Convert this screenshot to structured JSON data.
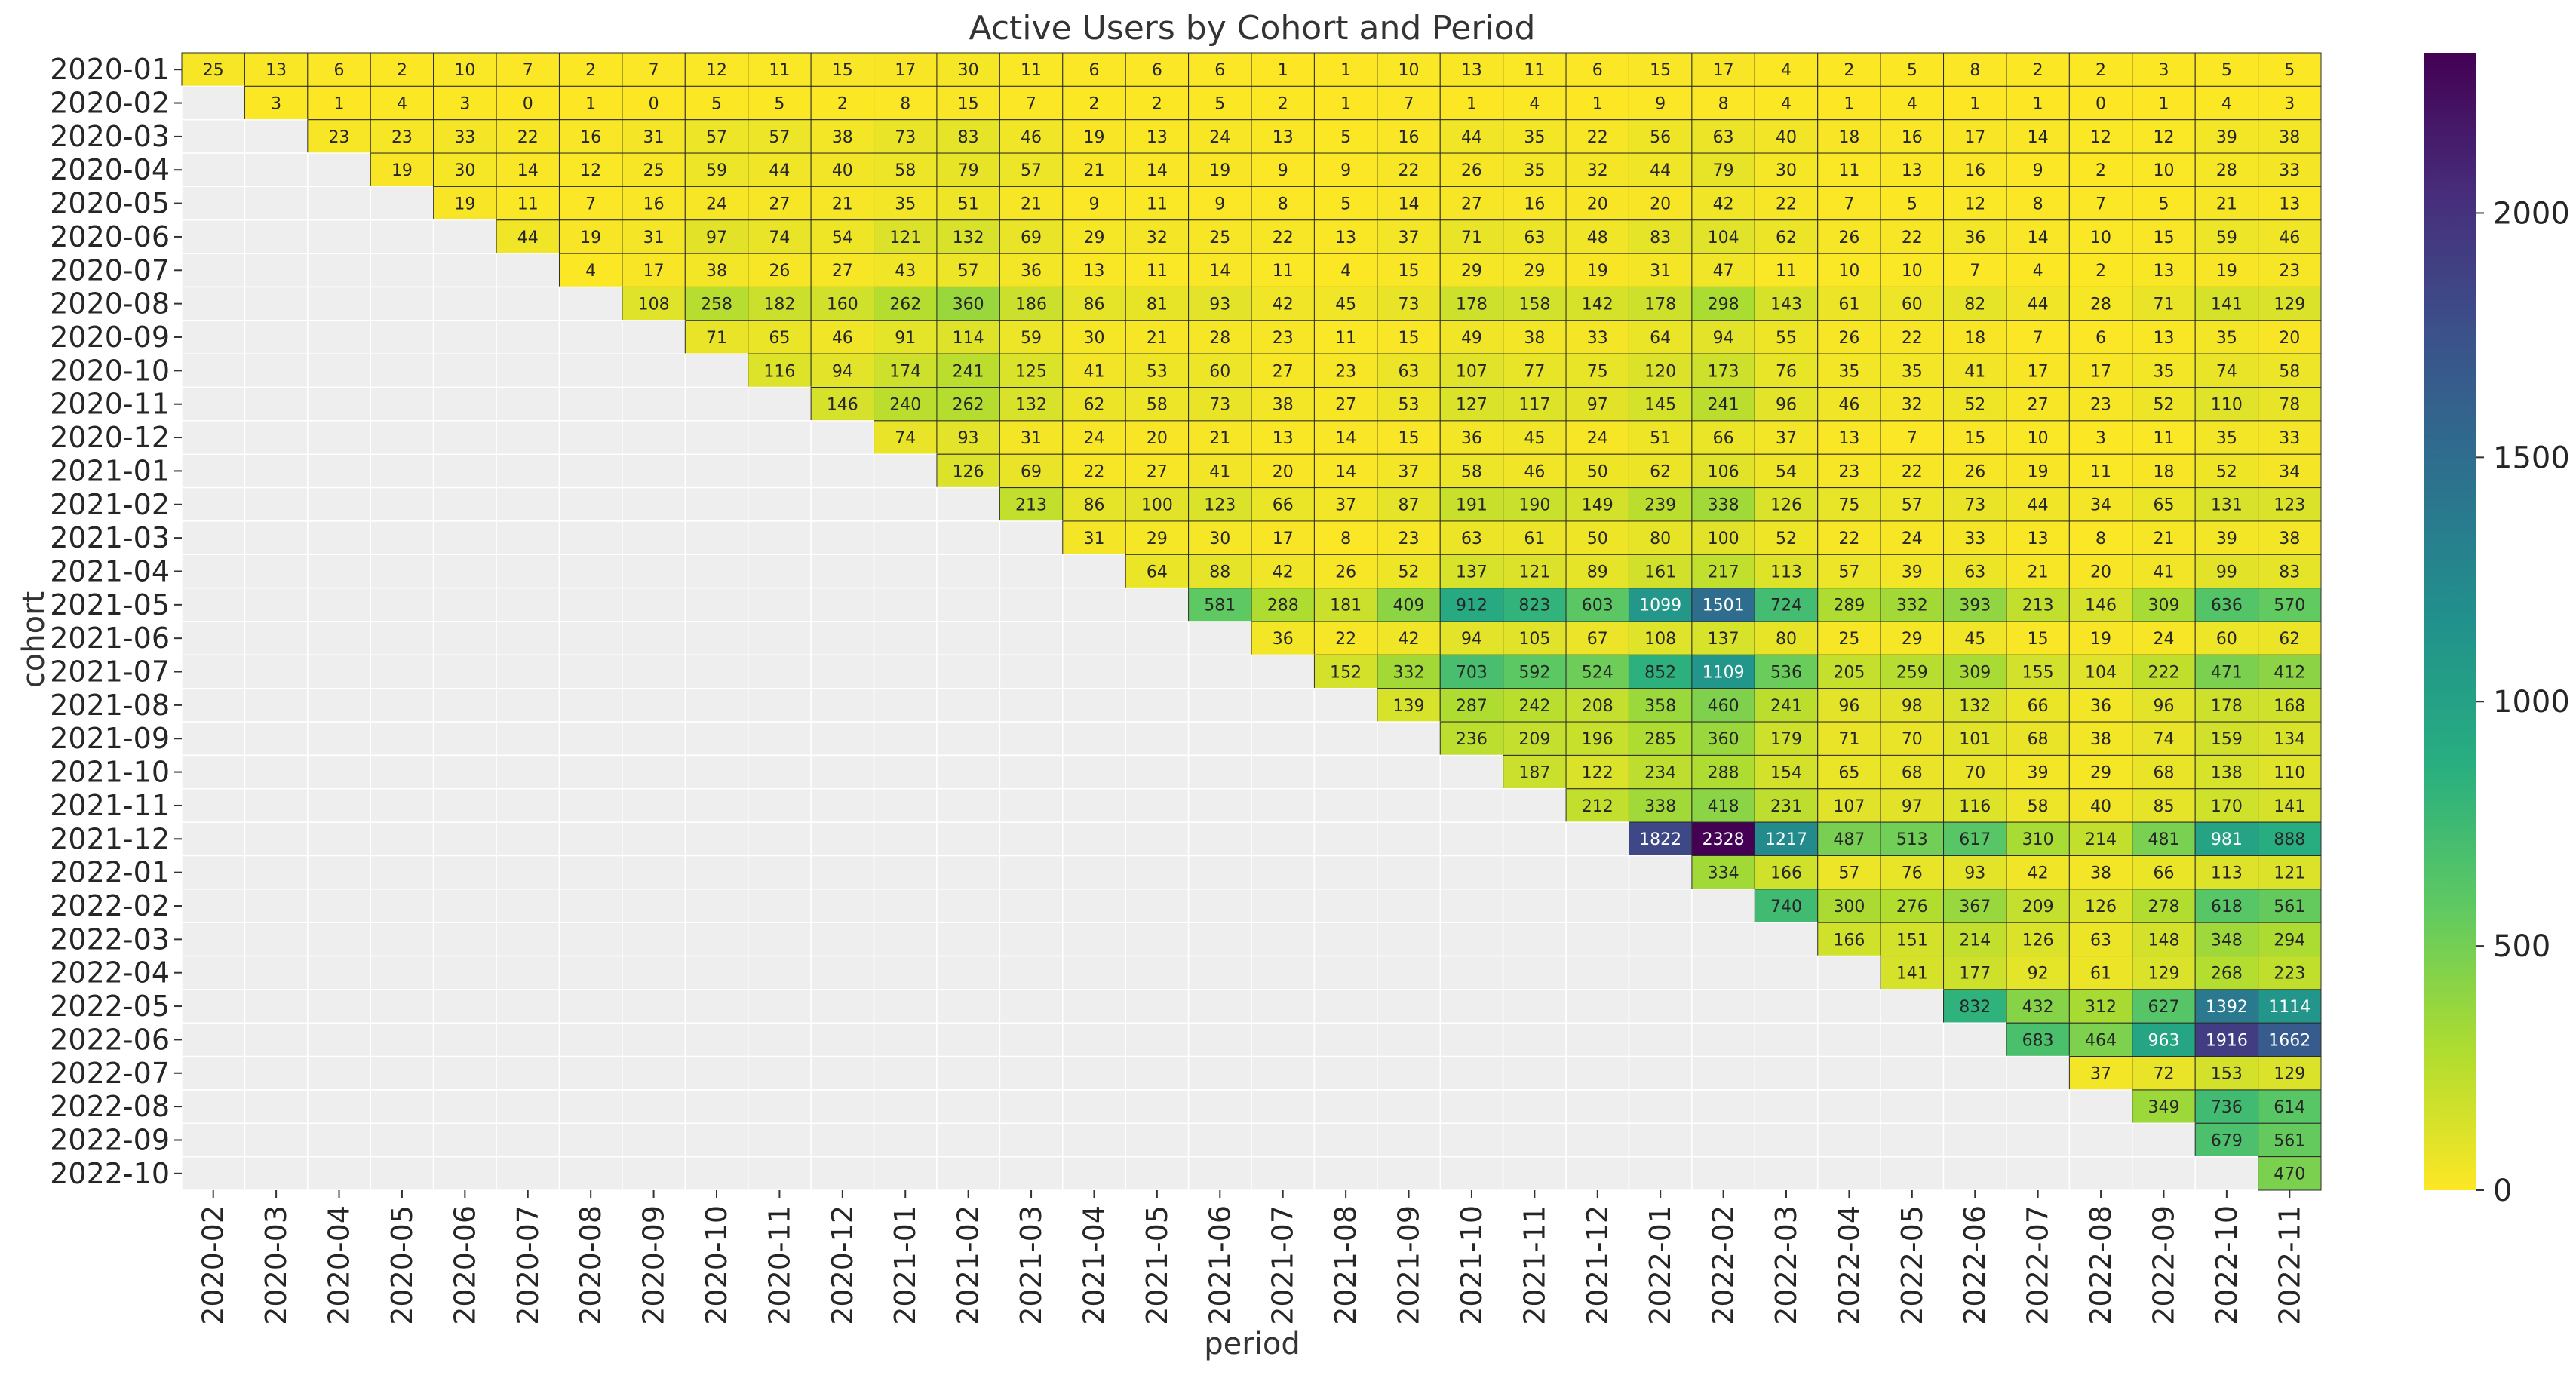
{
  "chart_data": {
    "type": "heatmap",
    "title": "Active Users by Cohort and Period",
    "xlabel": "period",
    "ylabel": "cohort",
    "x_categories": [
      "2020-02",
      "2020-03",
      "2020-04",
      "2020-05",
      "2020-06",
      "2020-07",
      "2020-08",
      "2020-09",
      "2020-10",
      "2020-11",
      "2020-12",
      "2021-01",
      "2021-02",
      "2021-03",
      "2021-04",
      "2021-05",
      "2021-06",
      "2021-07",
      "2021-08",
      "2021-09",
      "2021-10",
      "2021-11",
      "2021-12",
      "2022-01",
      "2022-02",
      "2022-03",
      "2022-04",
      "2022-05",
      "2022-06",
      "2022-07",
      "2022-08",
      "2022-09",
      "2022-10",
      "2022-11"
    ],
    "y_categories": [
      "2020-01",
      "2020-02",
      "2020-03",
      "2020-04",
      "2020-05",
      "2020-06",
      "2020-07",
      "2020-08",
      "2020-09",
      "2020-10",
      "2020-11",
      "2020-12",
      "2021-01",
      "2021-02",
      "2021-03",
      "2021-04",
      "2021-05",
      "2021-06",
      "2021-07",
      "2021-08",
      "2021-09",
      "2021-10",
      "2021-11",
      "2021-12",
      "2022-01",
      "2022-02",
      "2022-03",
      "2022-04",
      "2022-05",
      "2022-06",
      "2022-07",
      "2022-08",
      "2022-09",
      "2022-10"
    ],
    "values": [
      [
        25,
        13,
        6,
        2,
        10,
        7,
        2,
        7,
        12,
        11,
        15,
        17,
        30,
        11,
        6,
        6,
        6,
        1,
        1,
        10,
        13,
        11,
        6,
        15,
        17,
        4,
        2,
        5,
        8,
        2,
        2,
        3,
        5,
        5
      ],
      [
        null,
        3,
        1,
        4,
        3,
        0,
        1,
        0,
        5,
        5,
        2,
        8,
        15,
        7,
        2,
        2,
        5,
        2,
        1,
        7,
        1,
        4,
        1,
        9,
        8,
        4,
        1,
        4,
        1,
        1,
        0,
        1,
        4,
        3
      ],
      [
        null,
        null,
        23,
        23,
        33,
        22,
        16,
        31,
        57,
        57,
        38,
        73,
        83,
        46,
        19,
        13,
        24,
        13,
        5,
        16,
        44,
        35,
        22,
        56,
        63,
        40,
        18,
        16,
        17,
        14,
        12,
        12,
        39,
        38
      ],
      [
        null,
        null,
        null,
        19,
        30,
        14,
        12,
        25,
        59,
        44,
        40,
        58,
        79,
        57,
        21,
        14,
        19,
        9,
        9,
        22,
        26,
        35,
        32,
        44,
        79,
        30,
        11,
        13,
        16,
        9,
        2,
        10,
        28,
        33
      ],
      [
        null,
        null,
        null,
        null,
        19,
        11,
        7,
        16,
        24,
        27,
        21,
        35,
        51,
        21,
        9,
        11,
        9,
        8,
        5,
        14,
        27,
        16,
        20,
        20,
        42,
        22,
        7,
        5,
        12,
        8,
        7,
        5,
        21,
        13
      ],
      [
        null,
        null,
        null,
        null,
        null,
        44,
        19,
        31,
        97,
        74,
        54,
        121,
        132,
        69,
        29,
        32,
        25,
        22,
        13,
        37,
        71,
        63,
        48,
        83,
        104,
        62,
        26,
        22,
        36,
        14,
        10,
        15,
        59,
        46
      ],
      [
        null,
        null,
        null,
        null,
        null,
        null,
        4,
        17,
        38,
        26,
        27,
        43,
        57,
        36,
        13,
        11,
        14,
        11,
        4,
        15,
        29,
        29,
        19,
        31,
        47,
        11,
        10,
        10,
        7,
        4,
        2,
        13,
        19,
        23
      ],
      [
        null,
        null,
        null,
        null,
        null,
        null,
        null,
        108,
        258,
        182,
        160,
        262,
        360,
        186,
        86,
        81,
        93,
        42,
        45,
        73,
        178,
        158,
        142,
        178,
        298,
        143,
        61,
        60,
        82,
        44,
        28,
        71,
        141,
        129
      ],
      [
        null,
        null,
        null,
        null,
        null,
        null,
        null,
        null,
        71,
        65,
        46,
        91,
        114,
        59,
        30,
        21,
        28,
        23,
        11,
        15,
        49,
        38,
        33,
        64,
        94,
        55,
        26,
        22,
        18,
        7,
        6,
        13,
        35,
        20
      ],
      [
        null,
        null,
        null,
        null,
        null,
        null,
        null,
        null,
        null,
        116,
        94,
        174,
        241,
        125,
        41,
        53,
        60,
        27,
        23,
        63,
        107,
        77,
        75,
        120,
        173,
        76,
        35,
        35,
        41,
        17,
        17,
        35,
        74,
        58
      ],
      [
        null,
        null,
        null,
        null,
        null,
        null,
        null,
        null,
        null,
        null,
        146,
        240,
        262,
        132,
        62,
        58,
        73,
        38,
        27,
        53,
        127,
        117,
        97,
        145,
        241,
        96,
        46,
        32,
        52,
        27,
        23,
        52,
        110,
        78
      ],
      [
        null,
        null,
        null,
        null,
        null,
        null,
        null,
        null,
        null,
        null,
        null,
        74,
        93,
        31,
        24,
        20,
        21,
        13,
        14,
        15,
        36,
        45,
        24,
        51,
        66,
        37,
        13,
        7,
        15,
        10,
        3,
        11,
        35,
        33
      ],
      [
        null,
        null,
        null,
        null,
        null,
        null,
        null,
        null,
        null,
        null,
        null,
        null,
        126,
        69,
        22,
        27,
        41,
        20,
        14,
        37,
        58,
        46,
        50,
        62,
        106,
        54,
        23,
        22,
        26,
        19,
        11,
        18,
        52,
        34
      ],
      [
        null,
        null,
        null,
        null,
        null,
        null,
        null,
        null,
        null,
        null,
        null,
        null,
        null,
        213,
        86,
        100,
        123,
        66,
        37,
        87,
        191,
        190,
        149,
        239,
        338,
        126,
        75,
        57,
        73,
        44,
        34,
        65,
        131,
        123
      ],
      [
        null,
        null,
        null,
        null,
        null,
        null,
        null,
        null,
        null,
        null,
        null,
        null,
        null,
        null,
        31,
        29,
        30,
        17,
        8,
        23,
        63,
        61,
        50,
        80,
        100,
        52,
        22,
        24,
        33,
        13,
        8,
        21,
        39,
        38
      ],
      [
        null,
        null,
        null,
        null,
        null,
        null,
        null,
        null,
        null,
        null,
        null,
        null,
        null,
        null,
        null,
        64,
        88,
        42,
        26,
        52,
        137,
        121,
        89,
        161,
        217,
        113,
        57,
        39,
        63,
        21,
        20,
        41,
        99,
        83
      ],
      [
        null,
        null,
        null,
        null,
        null,
        null,
        null,
        null,
        null,
        null,
        null,
        null,
        null,
        null,
        null,
        null,
        581,
        288,
        181,
        409,
        912,
        823,
        603,
        1099,
        1501,
        724,
        289,
        332,
        393,
        213,
        146,
        309,
        636,
        570
      ],
      [
        null,
        null,
        null,
        null,
        null,
        null,
        null,
        null,
        null,
        null,
        null,
        null,
        null,
        null,
        null,
        null,
        null,
        36,
        22,
        42,
        94,
        105,
        67,
        108,
        137,
        80,
        25,
        29,
        45,
        15,
        19,
        24,
        60,
        62
      ],
      [
        null,
        null,
        null,
        null,
        null,
        null,
        null,
        null,
        null,
        null,
        null,
        null,
        null,
        null,
        null,
        null,
        null,
        null,
        152,
        332,
        703,
        592,
        524,
        852,
        1109,
        536,
        205,
        259,
        309,
        155,
        104,
        222,
        471,
        412
      ],
      [
        null,
        null,
        null,
        null,
        null,
        null,
        null,
        null,
        null,
        null,
        null,
        null,
        null,
        null,
        null,
        null,
        null,
        null,
        null,
        139,
        287,
        242,
        208,
        358,
        460,
        241,
        96,
        98,
        132,
        66,
        36,
        96,
        178,
        168
      ],
      [
        null,
        null,
        null,
        null,
        null,
        null,
        null,
        null,
        null,
        null,
        null,
        null,
        null,
        null,
        null,
        null,
        null,
        null,
        null,
        null,
        236,
        209,
        196,
        285,
        360,
        179,
        71,
        70,
        101,
        68,
        38,
        74,
        159,
        134
      ],
      [
        null,
        null,
        null,
        null,
        null,
        null,
        null,
        null,
        null,
        null,
        null,
        null,
        null,
        null,
        null,
        null,
        null,
        null,
        null,
        null,
        null,
        187,
        122,
        234,
        288,
        154,
        65,
        68,
        70,
        39,
        29,
        68,
        138,
        110
      ],
      [
        null,
        null,
        null,
        null,
        null,
        null,
        null,
        null,
        null,
        null,
        null,
        null,
        null,
        null,
        null,
        null,
        null,
        null,
        null,
        null,
        null,
        null,
        212,
        338,
        418,
        231,
        107,
        97,
        116,
        58,
        40,
        85,
        170,
        141
      ],
      [
        null,
        null,
        null,
        null,
        null,
        null,
        null,
        null,
        null,
        null,
        null,
        null,
        null,
        null,
        null,
        null,
        null,
        null,
        null,
        null,
        null,
        null,
        null,
        1822,
        2328,
        1217,
        487,
        513,
        617,
        310,
        214,
        481,
        981,
        888
      ],
      [
        null,
        null,
        null,
        null,
        null,
        null,
        null,
        null,
        null,
        null,
        null,
        null,
        null,
        null,
        null,
        null,
        null,
        null,
        null,
        null,
        null,
        null,
        null,
        null,
        334,
        166,
        57,
        76,
        93,
        42,
        38,
        66,
        113,
        121
      ],
      [
        null,
        null,
        null,
        null,
        null,
        null,
        null,
        null,
        null,
        null,
        null,
        null,
        null,
        null,
        null,
        null,
        null,
        null,
        null,
        null,
        null,
        null,
        null,
        null,
        null,
        740,
        300,
        276,
        367,
        209,
        126,
        278,
        618,
        561
      ],
      [
        null,
        null,
        null,
        null,
        null,
        null,
        null,
        null,
        null,
        null,
        null,
        null,
        null,
        null,
        null,
        null,
        null,
        null,
        null,
        null,
        null,
        null,
        null,
        null,
        null,
        null,
        166,
        151,
        214,
        126,
        63,
        148,
        348,
        294
      ],
      [
        null,
        null,
        null,
        null,
        null,
        null,
        null,
        null,
        null,
        null,
        null,
        null,
        null,
        null,
        null,
        null,
        null,
        null,
        null,
        null,
        null,
        null,
        null,
        null,
        null,
        null,
        null,
        141,
        177,
        92,
        61,
        129,
        268,
        223
      ],
      [
        null,
        null,
        null,
        null,
        null,
        null,
        null,
        null,
        null,
        null,
        null,
        null,
        null,
        null,
        null,
        null,
        null,
        null,
        null,
        null,
        null,
        null,
        null,
        null,
        null,
        null,
        null,
        null,
        832,
        432,
        312,
        627,
        1392,
        1114
      ],
      [
        null,
        null,
        null,
        null,
        null,
        null,
        null,
        null,
        null,
        null,
        null,
        null,
        null,
        null,
        null,
        null,
        null,
        null,
        null,
        null,
        null,
        null,
        null,
        null,
        null,
        null,
        null,
        null,
        null,
        683,
        464,
        963,
        1916,
        1662
      ],
      [
        null,
        null,
        null,
        null,
        null,
        null,
        null,
        null,
        null,
        null,
        null,
        null,
        null,
        null,
        null,
        null,
        null,
        null,
        null,
        null,
        null,
        null,
        null,
        null,
        null,
        null,
        null,
        null,
        null,
        null,
        37,
        72,
        153,
        129
      ],
      [
        null,
        null,
        null,
        null,
        null,
        null,
        null,
        null,
        null,
        null,
        null,
        null,
        null,
        null,
        null,
        null,
        null,
        null,
        null,
        null,
        null,
        null,
        null,
        null,
        null,
        null,
        null,
        null,
        null,
        null,
        null,
        349,
        736,
        614
      ],
      [
        null,
        null,
        null,
        null,
        null,
        null,
        null,
        null,
        null,
        null,
        null,
        null,
        null,
        null,
        null,
        null,
        null,
        null,
        null,
        null,
        null,
        null,
        null,
        null,
        null,
        null,
        null,
        null,
        null,
        null,
        null,
        null,
        679,
        561
      ],
      [
        null,
        null,
        null,
        null,
        null,
        null,
        null,
        null,
        null,
        null,
        null,
        null,
        null,
        null,
        null,
        null,
        null,
        null,
        null,
        null,
        null,
        null,
        null,
        null,
        null,
        null,
        null,
        null,
        null,
        null,
        null,
        null,
        null,
        470
      ]
    ],
    "colormap": "viridis_r",
    "vmin": 0,
    "vmax": 2328,
    "colorbar_ticks": [
      0,
      500,
      1000,
      1500,
      2000
    ],
    "empty_cell_color": "#eeeeee",
    "cell_border_color": "#2b2b2b",
    "legend_position": "right"
  }
}
